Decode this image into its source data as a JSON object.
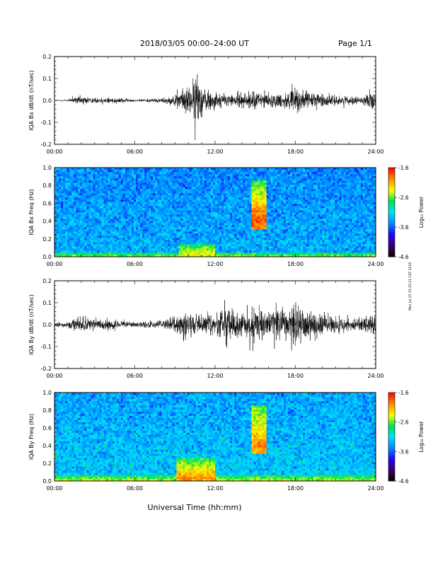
{
  "header": {
    "title": "2018/03/05   00:00–24:00 UT",
    "page_label": "Page 1/1"
  },
  "side_note": "Mon Jul 25 15:15:21 CST 2018",
  "colorbar": {
    "label": "Log₁₀ Power",
    "ticks": [
      "-1.6",
      "-2.6",
      "-3.6",
      "-4.6"
    ],
    "range": [
      -4.6,
      -1.6
    ],
    "colors": [
      "#000000",
      "#3a0068",
      "#2200ff",
      "#0088ff",
      "#00e0ff",
      "#00e050",
      "#ffff00",
      "#ff8800",
      "#ff0000"
    ]
  },
  "time_axis": {
    "ticks": [
      "00:00",
      "06:00",
      "12:00",
      "18:00",
      "24:00"
    ],
    "range_hours": [
      0,
      24
    ],
    "title": "Universal Time (hh:mm)"
  },
  "chart_data": [
    {
      "type": "line",
      "title": "",
      "ylabel": "IQA Bx dB/dt (nT/sec)",
      "ylim": [
        -0.2,
        0.2
      ],
      "yticks": [
        "0.2",
        "0.1",
        "0.0",
        "-0.1",
        "-0.2"
      ],
      "grid": false,
      "series": [
        {
          "x": [
            0,
            1,
            2,
            3,
            4,
            5,
            6,
            7,
            8,
            9,
            9.5,
            10,
            10.5,
            10.7,
            11,
            11.5,
            12,
            13,
            14,
            15,
            15.5,
            16,
            17,
            17.5,
            18,
            19,
            20,
            21,
            22,
            23,
            24
          ],
          "values": [
            0.005,
            0.01,
            0.04,
            0.02,
            0.03,
            0.02,
            0.01,
            0.015,
            0.02,
            0.04,
            0.09,
            0.12,
            0.19,
            0.21,
            0.13,
            0.09,
            0.07,
            0.05,
            0.06,
            0.08,
            0.07,
            0.05,
            0.06,
            0.09,
            0.1,
            0.07,
            0.06,
            0.04,
            0.03,
            0.03,
            0.08
          ]
        }
      ]
    },
    {
      "type": "heatmap",
      "title": "",
      "ylabel": "IQA Bx Freq (Hz)",
      "ylim": [
        0.0,
        1.0
      ],
      "yticks": [
        "1.0",
        "0.8",
        "0.6",
        "0.4",
        "0.2",
        "0.0"
      ],
      "value_range": [
        -4.6,
        -1.6
      ],
      "x_range_hours": [
        0,
        24
      ],
      "background_level": -3.3,
      "features": [
        {
          "t_start": 14.7,
          "t_end": 15.8,
          "f_low": 0.3,
          "f_high": 0.85,
          "peak_f": 0.4,
          "level": -1.8
        },
        {
          "t_start": 9.3,
          "t_end": 12.0,
          "f_low": 0.0,
          "f_high": 0.15,
          "peak_f": 0.02,
          "level": -2.3
        },
        {
          "t_start": 0,
          "t_end": 24,
          "f_low": 0.0,
          "f_high": 0.05,
          "peak_f": 0.0,
          "level": -2.5
        }
      ]
    },
    {
      "type": "line",
      "title": "",
      "ylabel": "IQA By dB/dt (nT/sec)",
      "ylim": [
        -0.2,
        0.2
      ],
      "yticks": [
        "0.2",
        "0.1",
        "0.0",
        "-0.1",
        "-0.2"
      ],
      "grid": false,
      "series": [
        {
          "x": [
            0,
            1,
            2,
            3,
            4,
            5,
            6,
            7,
            8,
            9,
            9.5,
            10,
            11,
            12,
            13,
            14,
            15,
            15.5,
            16,
            16.5,
            17,
            17.5,
            18,
            18.5,
            19,
            20,
            21,
            22,
            23,
            24
          ],
          "values": [
            0.02,
            0.02,
            0.07,
            0.04,
            0.05,
            0.03,
            0.02,
            0.03,
            0.04,
            0.06,
            0.1,
            0.11,
            0.09,
            0.1,
            0.12,
            0.1,
            0.13,
            0.11,
            0.1,
            0.17,
            0.12,
            0.13,
            0.19,
            0.14,
            0.13,
            0.09,
            0.07,
            0.06,
            0.05,
            0.1
          ]
        }
      ]
    },
    {
      "type": "heatmap",
      "title": "",
      "ylabel": "IQA By Freq (Hz)",
      "ylim": [
        0.0,
        1.0
      ],
      "yticks": [
        "1.0",
        "0.8",
        "0.6",
        "0.4",
        "0.2",
        "0.0"
      ],
      "value_range": [
        -4.6,
        -1.6
      ],
      "x_range_hours": [
        0,
        24
      ],
      "background_level": -3.2,
      "features": [
        {
          "t_start": 14.7,
          "t_end": 15.8,
          "f_low": 0.3,
          "f_high": 0.85,
          "peak_f": 0.4,
          "level": -2.0
        },
        {
          "t_start": 9.2,
          "t_end": 12.0,
          "f_low": 0.0,
          "f_high": 0.25,
          "peak_f": 0.03,
          "level": -2.0
        },
        {
          "t_start": 0,
          "t_end": 24,
          "f_low": 0.0,
          "f_high": 0.06,
          "peak_f": 0.0,
          "level": -2.4
        }
      ]
    }
  ]
}
